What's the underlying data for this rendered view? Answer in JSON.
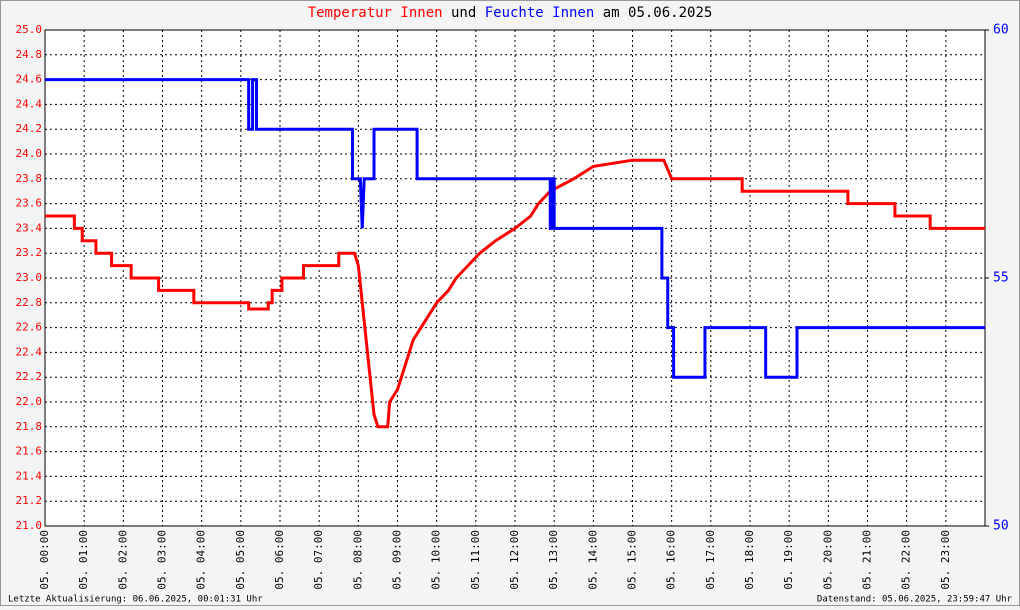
{
  "chart_data": {
    "type": "line",
    "title_connector": "und",
    "title_suffix": "am 05.06.2025",
    "footer_left": "Letzte Aktualisierung: 06.06.2025, 00:01:31 Uhr",
    "footer_right": "Datenstand: 05.06.2025, 23:59:47 Uhr",
    "xlim": [
      0,
      24
    ],
    "xticks": [
      {
        "value": 0,
        "label": "05. 00:00"
      },
      {
        "value": 1,
        "label": "05. 01:00"
      },
      {
        "value": 2,
        "label": "05. 02:00"
      },
      {
        "value": 3,
        "label": "05. 03:00"
      },
      {
        "value": 4,
        "label": "05. 04:00"
      },
      {
        "value": 5,
        "label": "05. 05:00"
      },
      {
        "value": 6,
        "label": "05. 06:00"
      },
      {
        "value": 7,
        "label": "05. 07:00"
      },
      {
        "value": 8,
        "label": "05. 08:00"
      },
      {
        "value": 9,
        "label": "05. 09:00"
      },
      {
        "value": 10,
        "label": "05. 10:00"
      },
      {
        "value": 11,
        "label": "05. 11:00"
      },
      {
        "value": 12,
        "label": "05. 12:00"
      },
      {
        "value": 13,
        "label": "05. 13:00"
      },
      {
        "value": 14,
        "label": "05. 14:00"
      },
      {
        "value": 15,
        "label": "05. 15:00"
      },
      {
        "value": 16,
        "label": "05. 16:00"
      },
      {
        "value": 17,
        "label": "05. 17:00"
      },
      {
        "value": 18,
        "label": "05. 18:00"
      },
      {
        "value": 19,
        "label": "05. 19:00"
      },
      {
        "value": 20,
        "label": "05. 20:00"
      },
      {
        "value": 21,
        "label": "05. 21:00"
      },
      {
        "value": 22,
        "label": "05. 22:00"
      },
      {
        "value": 23,
        "label": "05. 23:00"
      }
    ],
    "ylim": [
      21,
      25
    ],
    "yticks": [
      {
        "value": 21,
        "label": "21.0"
      },
      21.2,
      21.4,
      21.6,
      21.8,
      {
        "value": 22,
        "label": "22.0"
      },
      22.2,
      22.4,
      22.6,
      22.8,
      {
        "value": 23,
        "label": "23.0"
      },
      23.2,
      23.4,
      23.6,
      23.8,
      {
        "value": 24,
        "label": "24.0"
      },
      24.2,
      24.4,
      24.6,
      24.8,
      {
        "value": 25,
        "label": "25.0"
      }
    ],
    "y2lim": [
      50,
      60
    ],
    "y2ticks": [
      50,
      55,
      60
    ],
    "grid": true,
    "series": [
      {
        "name": "Temperatur Innen",
        "color": "#ff0000",
        "x": [
          0,
          0.75,
          0.75,
          0.95,
          0.95,
          1.3,
          1.3,
          1.7,
          1.7,
          2.2,
          2.2,
          2.9,
          2.9,
          3.8,
          3.8,
          5.2,
          5.2,
          5.7,
          5.7,
          5.8,
          5.8,
          6.05,
          6.05,
          6.6,
          6.6,
          7.5,
          7.5,
          7.9,
          8.0,
          8.1,
          8.2,
          8.3,
          8.4,
          8.5,
          8.75,
          8.8,
          9.0,
          9.2,
          9.4,
          9.6,
          9.8,
          10.0,
          10.3,
          10.5,
          10.8,
          11.1,
          11.5,
          12.0,
          12.4,
          12.6,
          12.9,
          13.5,
          14.0,
          15.0,
          15.8,
          16.0,
          17.8,
          17.8,
          20.5,
          20.5,
          21.7,
          21.7,
          22.6,
          22.6,
          24
        ],
        "values": [
          23.5,
          23.5,
          23.4,
          23.4,
          23.3,
          23.3,
          23.2,
          23.2,
          23.1,
          23.1,
          23.0,
          23.0,
          22.9,
          22.9,
          22.8,
          22.8,
          22.75,
          22.75,
          22.8,
          22.8,
          22.9,
          22.9,
          23.0,
          23.0,
          23.1,
          23.1,
          23.2,
          23.2,
          23.1,
          22.8,
          22.5,
          22.2,
          21.9,
          21.8,
          21.8,
          22.0,
          22.1,
          22.3,
          22.5,
          22.6,
          22.7,
          22.8,
          22.9,
          23.0,
          23.1,
          23.2,
          23.3,
          23.4,
          23.5,
          23.6,
          23.7,
          23.8,
          23.9,
          23.95,
          23.95,
          23.8,
          23.8,
          23.7,
          23.7,
          23.6,
          23.6,
          23.5,
          23.5,
          23.4,
          23.4
        ]
      },
      {
        "name": "Feuchte Innen",
        "color": "#0000ff",
        "axis": "y2",
        "x": [
          0,
          5.2,
          5.2,
          5.3,
          5.3,
          5.4,
          5.4,
          7.85,
          7.85,
          8.05,
          8.1,
          8.15,
          8.4,
          8.4,
          9.5,
          9.5,
          12.9,
          12.9,
          12.95,
          12.95,
          13.0,
          13.0,
          15.75,
          15.75,
          15.9,
          15.9,
          16.05,
          16.05,
          16.85,
          16.85,
          18.4,
          18.4,
          19.2,
          19.2,
          24
        ],
        "values": [
          59,
          59,
          58,
          58,
          59,
          59,
          58,
          58,
          57,
          57,
          56,
          57,
          57,
          58,
          58,
          57,
          57,
          56,
          56,
          57,
          57,
          56,
          56,
          55,
          55,
          54,
          54,
          53,
          53,
          54,
          54,
          53,
          53,
          54,
          54
        ]
      }
    ]
  }
}
